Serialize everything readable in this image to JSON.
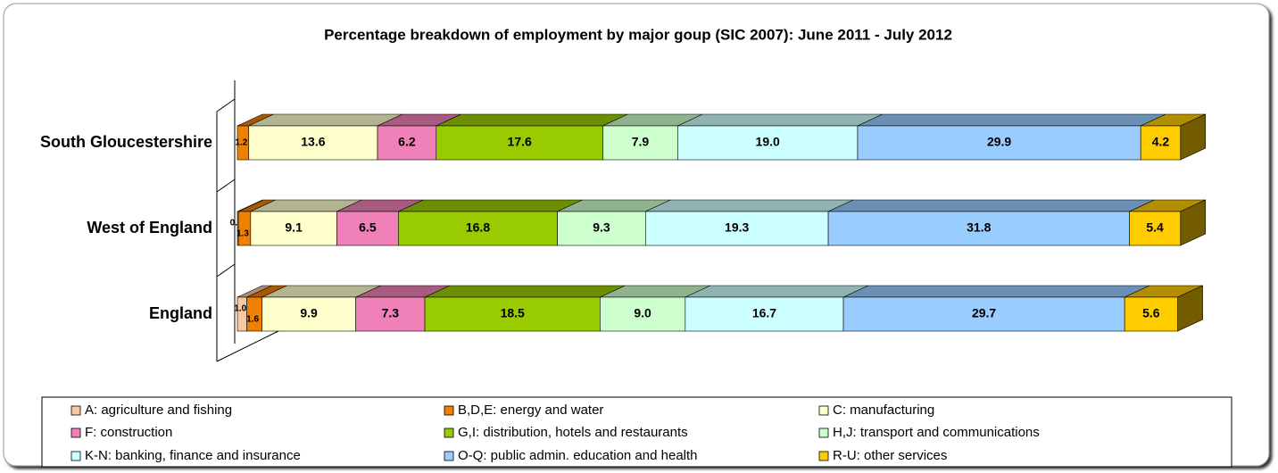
{
  "chart_data": {
    "type": "stacked_bar_3d_horizontal",
    "title": "Percentage breakdown of employment by major goup (SIC 2007): June 2011 - July 2012",
    "categories": [
      "South Gloucestershire",
      "West of England",
      "England"
    ],
    "xlim": [
      0,
      100
    ],
    "legend": "bottom",
    "series": [
      {
        "name": "A: agriculture and fishing",
        "color": "#F8C8A0",
        "values": [
          null,
          0.1,
          1.0
        ],
        "value_labels": [
          null,
          "0.1",
          "1.0"
        ]
      },
      {
        "name": "B,D,E: energy and water",
        "color": "#F08000",
        "values": [
          1.2,
          1.3,
          1.6
        ],
        "value_labels": [
          "1.2",
          "1.3",
          "1.6"
        ]
      },
      {
        "name": "C: manufacturing",
        "color": "#FFFFCC",
        "values": [
          13.6,
          9.1,
          9.9
        ],
        "value_labels": [
          "13.6",
          "9.1",
          "9.9"
        ]
      },
      {
        "name": "F: construction",
        "color": "#F080B8",
        "values": [
          6.2,
          6.5,
          7.3
        ],
        "value_labels": [
          "6.2",
          "6.5",
          "7.3"
        ]
      },
      {
        "name": "G,I: distribution, hotels and restaurants",
        "color": "#99CC00",
        "values": [
          17.6,
          16.8,
          18.5
        ],
        "value_labels": [
          "17.6",
          "16.8",
          "18.5"
        ]
      },
      {
        "name": "H,J: transport and communications",
        "color": "#CCFFCC",
        "values": [
          7.9,
          9.3,
          9.0
        ],
        "value_labels": [
          "7.9",
          "9.3",
          "9.0"
        ]
      },
      {
        "name": "K-N: banking, finance and insurance",
        "color": "#CCFFFF",
        "values": [
          19.0,
          19.3,
          16.7
        ],
        "value_labels": [
          "19.0",
          "19.3",
          "16.7"
        ]
      },
      {
        "name": "O-Q: public admin. education and health",
        "color": "#99CCFF",
        "values": [
          29.9,
          31.8,
          29.7
        ],
        "value_labels": [
          "29.9",
          "31.8",
          "29.7"
        ]
      },
      {
        "name": "R-U: other services",
        "color": "#FFCC00",
        "values": [
          4.2,
          5.4,
          5.6
        ],
        "value_labels": [
          "4.2",
          "5.4",
          "5.6"
        ]
      }
    ]
  }
}
